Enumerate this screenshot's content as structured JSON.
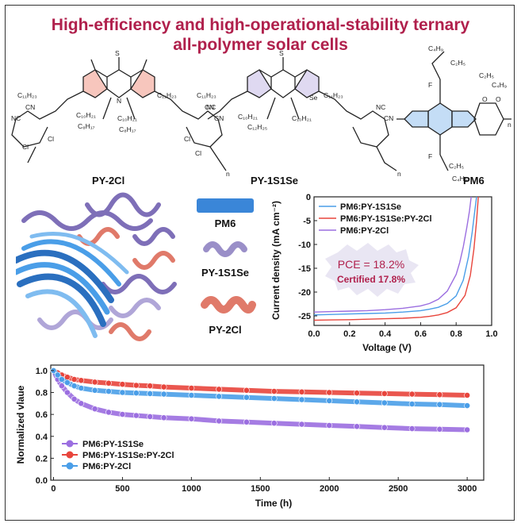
{
  "title_line1": "High-efficiency and high-operational-stability ternary",
  "title_line2": "all-polymer solar cells",
  "molecules": [
    {
      "name": "PY-2Cl"
    },
    {
      "name": "PY-1S1Se"
    },
    {
      "name": "PM6"
    }
  ],
  "structure_labels": {
    "c11h23": "C₁₁H₂₃",
    "c10h21": "C₁₀H₂₁",
    "c8h17": "C₈H₁₇",
    "c12h25": "C₁₂H₂₅",
    "c4h9": "C₄H₉",
    "c2h5": "C₂H₅",
    "cn": "CN",
    "nc": "NC",
    "cl": "Cl",
    "s": "S",
    "se": "Se",
    "n": "N",
    "f": "F",
    "o": "O",
    "sub_n": "n"
  },
  "legend_blocks": [
    {
      "label": "PM6",
      "color": "#3a86d8"
    },
    {
      "label": "PY-1S1Se",
      "color": "#9a8fc8"
    },
    {
      "label": "PY-2Cl",
      "color": "#e07a6a"
    }
  ],
  "colors": {
    "title": "#b0204c",
    "blue": "#4a9ee8",
    "red": "#e8453c",
    "purple": "#9b6ee0",
    "pce_text": "#b0204c"
  },
  "annotation": {
    "pce": "PCE = 18.2%",
    "certified": "Certified 17.8%"
  },
  "chart_data": [
    {
      "type": "line",
      "xlabel": "Voltage (V)",
      "ylabel": "Current density (mA cm⁻²)",
      "xlim": [
        0.0,
        1.0
      ],
      "ylim": [
        -27,
        0
      ],
      "xticks": [
        0.0,
        0.2,
        0.4,
        0.6,
        0.8,
        1.0
      ],
      "xtick_labels": [
        "0.0",
        "0.2",
        "0.4",
        "0.6",
        "0.8",
        "1.0"
      ],
      "yticks": [
        0,
        -5,
        -10,
        -15,
        -20,
        -25
      ],
      "ytick_labels": [
        "0",
        "-5",
        "-10",
        "-15",
        "-20",
        "-25"
      ],
      "legend_position": "top-right",
      "series": [
        {
          "name": "PM6:PY-1S1Se",
          "color": "#4a9ee8",
          "x": [
            0,
            0.1,
            0.2,
            0.3,
            0.4,
            0.5,
            0.6,
            0.65,
            0.7,
            0.75,
            0.8,
            0.84,
            0.87,
            0.89,
            0.905,
            0.915
          ],
          "y": [
            -24.8,
            -24.7,
            -24.6,
            -24.5,
            -24.4,
            -24.2,
            -23.9,
            -23.6,
            -23.2,
            -22.4,
            -20.8,
            -17.5,
            -12.5,
            -7.5,
            -3,
            0
          ]
        },
        {
          "name": "PM6:PY-1S1Se:PY-2Cl",
          "color": "#e8453c",
          "x": [
            0,
            0.1,
            0.2,
            0.3,
            0.4,
            0.5,
            0.6,
            0.65,
            0.7,
            0.75,
            0.8,
            0.85,
            0.88,
            0.9,
            0.915,
            0.925
          ],
          "y": [
            -25.9,
            -25.85,
            -25.8,
            -25.7,
            -25.6,
            -25.5,
            -25.3,
            -25.1,
            -24.8,
            -24.3,
            -23.3,
            -20.7,
            -16.5,
            -11,
            -5,
            0
          ]
        },
        {
          "name": "PM6:PY-2Cl",
          "color": "#9b6ee0",
          "x": [
            0,
            0.1,
            0.2,
            0.3,
            0.4,
            0.5,
            0.6,
            0.65,
            0.7,
            0.75,
            0.8,
            0.82,
            0.84,
            0.86,
            0.875,
            0.885
          ],
          "y": [
            -24.2,
            -24.1,
            -24.0,
            -23.9,
            -23.7,
            -23.4,
            -22.9,
            -22.4,
            -21.5,
            -19.8,
            -16.3,
            -13.8,
            -10.5,
            -6.5,
            -3,
            0
          ]
        }
      ]
    },
    {
      "type": "scatter",
      "xlabel": "Time (h)",
      "ylabel": "Normalized vlaue",
      "xlim": [
        -20,
        3120
      ],
      "ylim": [
        0.0,
        1.05
      ],
      "xticks": [
        0,
        500,
        1000,
        1500,
        2000,
        2500,
        3000
      ],
      "xtick_labels": [
        "0",
        "500",
        "1000",
        "1500",
        "2000",
        "2500",
        "3000"
      ],
      "yticks": [
        0.0,
        0.2,
        0.4,
        0.6,
        0.8,
        1.0
      ],
      "ytick_labels": [
        "0.0",
        "0.2",
        "0.4",
        "0.6",
        "0.8",
        "1.0"
      ],
      "legend_position": "bottom-left",
      "series": [
        {
          "name": "PM6:PY-1S1Se",
          "color": "#9b6ee0",
          "x": [
            0,
            30,
            60,
            100,
            150,
            200,
            300,
            400,
            500,
            600,
            700,
            800,
            1000,
            1200,
            1400,
            1600,
            1800,
            2000,
            2200,
            2400,
            2600,
            2800,
            3000
          ],
          "y": [
            1.0,
            0.92,
            0.86,
            0.8,
            0.74,
            0.7,
            0.65,
            0.62,
            0.6,
            0.59,
            0.58,
            0.57,
            0.56,
            0.54,
            0.53,
            0.52,
            0.51,
            0.5,
            0.49,
            0.48,
            0.47,
            0.465,
            0.46
          ]
        },
        {
          "name": "PM6:PY-1S1Se:PY-2Cl",
          "color": "#e8453c",
          "x": [
            0,
            30,
            60,
            100,
            150,
            200,
            300,
            400,
            500,
            600,
            700,
            800,
            1000,
            1200,
            1400,
            1600,
            1800,
            2000,
            2200,
            2400,
            2600,
            2800,
            3000
          ],
          "y": [
            1.0,
            0.98,
            0.96,
            0.94,
            0.92,
            0.91,
            0.895,
            0.885,
            0.875,
            0.865,
            0.86,
            0.85,
            0.84,
            0.83,
            0.82,
            0.81,
            0.805,
            0.8,
            0.795,
            0.79,
            0.785,
            0.78,
            0.775
          ]
        },
        {
          "name": "PM6:PY-2Cl",
          "color": "#4a9ee8",
          "x": [
            0,
            30,
            60,
            100,
            150,
            200,
            300,
            400,
            500,
            600,
            700,
            800,
            1000,
            1200,
            1400,
            1600,
            1800,
            2000,
            2200,
            2400,
            2600,
            2800,
            3000
          ],
          "y": [
            1.0,
            0.96,
            0.92,
            0.89,
            0.86,
            0.84,
            0.82,
            0.81,
            0.8,
            0.795,
            0.79,
            0.785,
            0.775,
            0.765,
            0.755,
            0.745,
            0.735,
            0.725,
            0.715,
            0.705,
            0.695,
            0.69,
            0.68
          ]
        }
      ]
    }
  ]
}
